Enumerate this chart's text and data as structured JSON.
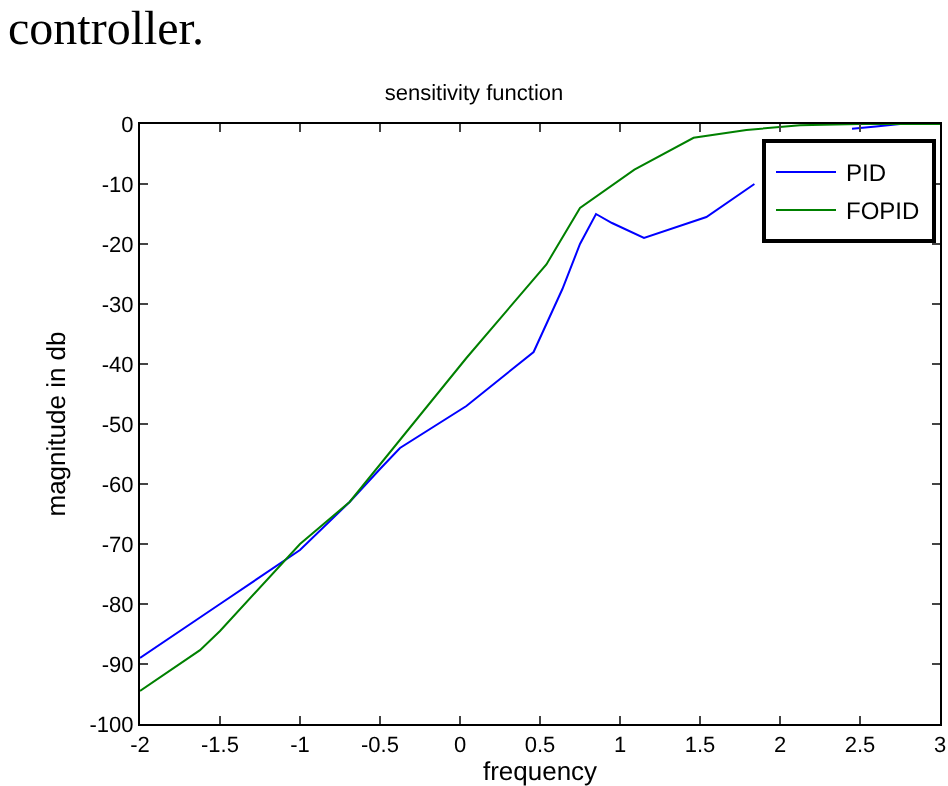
{
  "chart_data": {
    "type": "line",
    "title": "sensitivity function",
    "xlabel": "frequency",
    "ylabel": "magnitude in db",
    "annotations": [
      "controller."
    ],
    "series": [
      {
        "name": "PID",
        "color": "#0000ff",
        "x": [
          -2,
          -1.5,
          -1,
          -0.69,
          -0.5,
          -0.375,
          0.04,
          0.46,
          0.64,
          0.75,
          0.85,
          0.95,
          1.15,
          1.54,
          1.84,
          2.1,
          2.45,
          2.6,
          2.75,
          3
        ],
        "values": [
          -89,
          -80,
          -71,
          -63,
          -57.5,
          -54,
          -47,
          -38,
          -27.5,
          -20,
          -15,
          -16.5,
          -19,
          -15.5,
          -10,
          null,
          -0.8,
          -0.4,
          0,
          0
        ]
      },
      {
        "name": "FOPID",
        "color": "#008000",
        "x": [
          -2,
          -1.625,
          -1.5,
          -1,
          -0.69,
          0.04,
          0.54,
          0.75,
          1.09,
          1.46,
          1.79,
          2.125,
          2.5,
          3
        ],
        "values": [
          -94.5,
          -87.7,
          -84.5,
          -70,
          -63,
          -39,
          -23.4,
          -14,
          -7.6,
          -2.3,
          -1,
          -0.2,
          0,
          0
        ]
      }
    ],
    "xlim": [
      -2,
      3
    ],
    "xticks": [
      -2,
      -1.5,
      -1,
      -0.5,
      0,
      0.5,
      1,
      1.5,
      2,
      2.5,
      3
    ],
    "ylim": [
      -100,
      0
    ],
    "yticks": [
      -100,
      -90,
      -80,
      -70,
      -60,
      -50,
      -40,
      -30,
      -20,
      -10,
      0
    ],
    "grid": false,
    "legend": "top right",
    "marker": "none",
    "line_style": "solid"
  }
}
